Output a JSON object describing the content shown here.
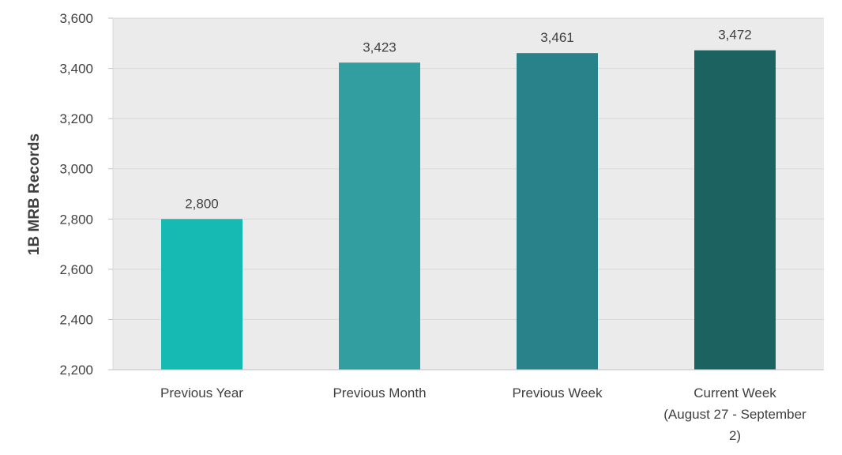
{
  "chart_data": {
    "type": "bar",
    "title": "",
    "xlabel": "",
    "ylabel": "1B MRB Records",
    "ylim": [
      2200,
      3600
    ],
    "yticks": [
      2200,
      2400,
      2600,
      2800,
      3000,
      3200,
      3400,
      3600
    ],
    "ytick_labels": [
      "2,200",
      "2,400",
      "2,600",
      "2,800",
      "3,000",
      "3,200",
      "3,400",
      "3,600"
    ],
    "categories": [
      [
        "Previous Year"
      ],
      [
        "Previous Month"
      ],
      [
        "Previous Week"
      ],
      [
        "Current Week",
        "(August 27 - September",
        "2)"
      ]
    ],
    "values": [
      2800,
      3423,
      3461,
      3472
    ],
    "value_labels": [
      "2,800",
      "3,423",
      "3,461",
      "3,472"
    ],
    "colors": [
      "#17bab2",
      "#339e9f",
      "#298289",
      "#1b6261"
    ],
    "grid": true,
    "legend": "none"
  }
}
